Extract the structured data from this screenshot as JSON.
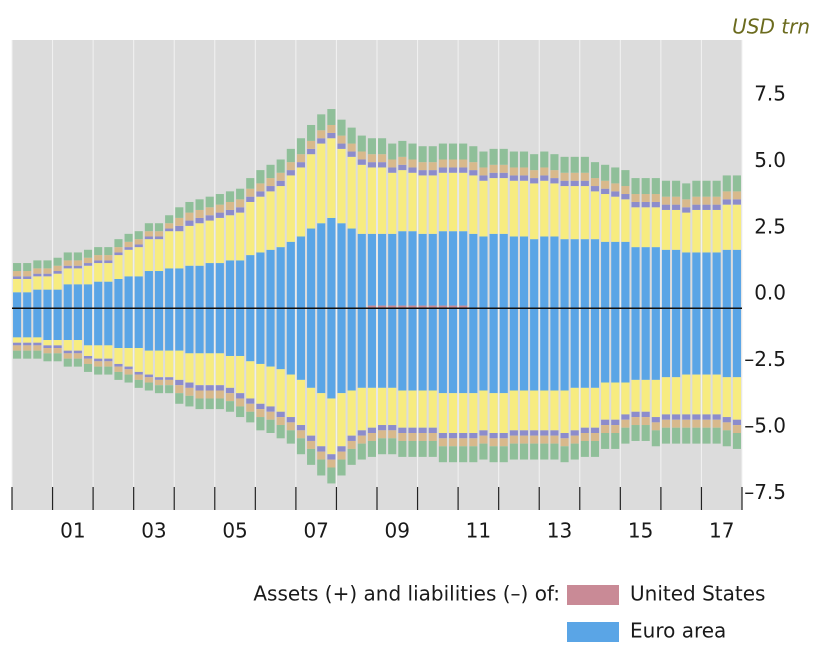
{
  "chart_data": {
    "type": "bar",
    "stacked": true,
    "unit": "USD trn",
    "legend_title": "Assets (+) and liabilities (–) of:",
    "categories": [
      null,
      null,
      null,
      null,
      null,
      "01",
      null,
      null,
      null,
      null,
      null,
      null,
      null,
      "03",
      null,
      null,
      null,
      null,
      null,
      null,
      null,
      "05",
      null,
      null,
      null,
      null,
      null,
      null,
      null,
      "07",
      null,
      null,
      null,
      null,
      null,
      null,
      null,
      "09",
      null,
      null,
      null,
      null,
      null,
      null,
      null,
      "11",
      null,
      null,
      null,
      null,
      null,
      null,
      null,
      "13",
      null,
      null,
      null,
      null,
      null,
      null,
      null,
      "15",
      null,
      null,
      null,
      null,
      null,
      null,
      null,
      "17",
      null,
      null
    ],
    "ylim": [
      -7.6,
      10.1
    ],
    "yticks": [
      {
        "value": -7.5,
        "label": "–7.5"
      },
      {
        "value": -5,
        "label": "–5.0"
      },
      {
        "value": -2.5,
        "label": "–2.5"
      },
      {
        "value": 0,
        "label": "0.0"
      },
      2.5,
      {
        "value": 5,
        "label": "5.0"
      },
      7.5
    ],
    "series": [
      {
        "name": "United States",
        "color": "#c98a96",
        "values": [
          0,
          0,
          0,
          0,
          0,
          0,
          0,
          0,
          0,
          0,
          0,
          0,
          0,
          0,
          0,
          0,
          0,
          0,
          0,
          0,
          0,
          0,
          0,
          0,
          0,
          0,
          0,
          0,
          0,
          0,
          0,
          0,
          0,
          0,
          0,
          0.1,
          0.1,
          0.1,
          0.1,
          0.1,
          0.1,
          0.1,
          0.1,
          0.1,
          0.1,
          0,
          0,
          0,
          0,
          0,
          0,
          0,
          0,
          0,
          0,
          0,
          0,
          0,
          0,
          0,
          0,
          0,
          0,
          0,
          0,
          0,
          0,
          0,
          0,
          0,
          0,
          0
        ]
      },
      {
        "name": "Euro area",
        "color": "#5aa5e6",
        "values": [
          0.6,
          0.6,
          0.7,
          0.7,
          0.7,
          0.9,
          0.9,
          0.9,
          1.0,
          1.0,
          1.1,
          1.2,
          1.2,
          1.4,
          1.4,
          1.5,
          1.5,
          1.6,
          1.6,
          1.7,
          1.7,
          1.8,
          1.8,
          2.0,
          2.1,
          2.2,
          2.3,
          2.5,
          2.7,
          3.0,
          3.2,
          3.4,
          3.2,
          3.0,
          2.8,
          2.7,
          2.7,
          2.7,
          2.8,
          2.8,
          2.7,
          2.7,
          2.8,
          2.8,
          2.8,
          2.8,
          2.7,
          2.8,
          2.8,
          2.7,
          2.7,
          2.6,
          2.7,
          2.7,
          2.6,
          2.6,
          2.6,
          2.6,
          2.5,
          2.5,
          2.5,
          2.3,
          2.3,
          2.3,
          2.2,
          2.2,
          2.1,
          2.1,
          2.1,
          2.1,
          2.2,
          2.2
        ]
      },
      {
        "color": "#f7ec80",
        "values": [
          0.5,
          0.5,
          0.5,
          0.5,
          0.6,
          0.6,
          0.6,
          0.7,
          0.7,
          0.7,
          0.9,
          1.0,
          1.1,
          1.2,
          1.2,
          1.4,
          1.4,
          1.5,
          1.6,
          1.6,
          1.7,
          1.7,
          1.8,
          2.0,
          2.1,
          2.2,
          2.3,
          2.5,
          2.6,
          2.8,
          3.0,
          3.0,
          2.8,
          2.7,
          2.6,
          2.5,
          2.5,
          2.3,
          2.3,
          2.2,
          2.2,
          2.2,
          2.2,
          2.2,
          2.2,
          2.2,
          2.1,
          2.1,
          2.1,
          2.1,
          2.1,
          2.1,
          2.1,
          2.0,
          2.0,
          2.0,
          2.0,
          1.8,
          1.8,
          1.7,
          1.6,
          1.5,
          1.5,
          1.5,
          1.5,
          1.5,
          1.5,
          1.6,
          1.6,
          1.6,
          1.7,
          1.7
        ]
      },
      {
        "color": "#8c8ccc",
        "values": [
          0.1,
          0.1,
          0.1,
          0.1,
          0.1,
          0.1,
          0.1,
          0.1,
          0.1,
          0.1,
          0.1,
          0.1,
          0.1,
          0.1,
          0.1,
          0.1,
          0.2,
          0.2,
          0.2,
          0.2,
          0.2,
          0.2,
          0.2,
          0.2,
          0.2,
          0.2,
          0.2,
          0.2,
          0.2,
          0.2,
          0.2,
          0.2,
          0.2,
          0.2,
          0.2,
          0.2,
          0.2,
          0.2,
          0.2,
          0.2,
          0.2,
          0.2,
          0.2,
          0.2,
          0.2,
          0.2,
          0.2,
          0.2,
          0.2,
          0.2,
          0.2,
          0.2,
          0.2,
          0.2,
          0.2,
          0.2,
          0.2,
          0.2,
          0.2,
          0.2,
          0.2,
          0.2,
          0.2,
          0.2,
          0.2,
          0.2,
          0.2,
          0.2,
          0.2,
          0.2,
          0.2,
          0.2
        ]
      },
      {
        "color": "#d8b98c",
        "values": [
          0.2,
          0.2,
          0.2,
          0.2,
          0.2,
          0.2,
          0.2,
          0.2,
          0.2,
          0.2,
          0.2,
          0.2,
          0.2,
          0.2,
          0.2,
          0.2,
          0.3,
          0.3,
          0.3,
          0.3,
          0.3,
          0.3,
          0.3,
          0.3,
          0.3,
          0.3,
          0.3,
          0.3,
          0.3,
          0.3,
          0.3,
          0.3,
          0.3,
          0.3,
          0.3,
          0.3,
          0.3,
          0.3,
          0.3,
          0.3,
          0.3,
          0.3,
          0.3,
          0.3,
          0.3,
          0.3,
          0.3,
          0.3,
          0.3,
          0.3,
          0.3,
          0.3,
          0.3,
          0.3,
          0.3,
          0.3,
          0.3,
          0.3,
          0.3,
          0.3,
          0.3,
          0.3,
          0.3,
          0.3,
          0.3,
          0.3,
          0.3,
          0.3,
          0.3,
          0.3,
          0.3,
          0.3
        ]
      },
      {
        "color": "#8fbf99",
        "values": [
          0.3,
          0.3,
          0.3,
          0.3,
          0.3,
          0.3,
          0.3,
          0.3,
          0.3,
          0.3,
          0.3,
          0.3,
          0.3,
          0.3,
          0.3,
          0.3,
          0.4,
          0.4,
          0.4,
          0.4,
          0.4,
          0.4,
          0.4,
          0.4,
          0.5,
          0.5,
          0.5,
          0.5,
          0.6,
          0.6,
          0.6,
          0.6,
          0.6,
          0.6,
          0.6,
          0.6,
          0.6,
          0.6,
          0.6,
          0.6,
          0.6,
          0.6,
          0.6,
          0.6,
          0.6,
          0.6,
          0.6,
          0.6,
          0.6,
          0.6,
          0.6,
          0.6,
          0.6,
          0.6,
          0.6,
          0.6,
          0.6,
          0.6,
          0.6,
          0.6,
          0.6,
          0.6,
          0.6,
          0.6,
          0.6,
          0.6,
          0.6,
          0.6,
          0.6,
          0.6,
          0.6,
          0.6
        ]
      },
      {
        "color": "#5aa5e6",
        "values": [
          -1.1,
          -1.1,
          -1.1,
          -1.2,
          -1.2,
          -1.2,
          -1.2,
          -1.4,
          -1.4,
          -1.4,
          -1.5,
          -1.5,
          -1.5,
          -1.6,
          -1.6,
          -1.6,
          -1.6,
          -1.7,
          -1.7,
          -1.7,
          -1.7,
          -1.8,
          -1.8,
          -2.0,
          -2.1,
          -2.2,
          -2.3,
          -2.5,
          -2.7,
          -3.0,
          -3.2,
          -3.4,
          -3.2,
          -3.1,
          -3.0,
          -3.0,
          -3.0,
          -3.0,
          -3.1,
          -3.1,
          -3.1,
          -3.1,
          -3.2,
          -3.2,
          -3.2,
          -3.2,
          -3.1,
          -3.2,
          -3.2,
          -3.1,
          -3.1,
          -3.1,
          -3.1,
          -3.1,
          -3.1,
          -3.0,
          -3.0,
          -3.0,
          -2.8,
          -2.8,
          -2.8,
          -2.7,
          -2.7,
          -2.7,
          -2.6,
          -2.6,
          -2.5,
          -2.5,
          -2.5,
          -2.5,
          -2.6,
          -2.6
        ]
      },
      {
        "color": "#f7ec80",
        "values": [
          -0.2,
          -0.2,
          -0.2,
          -0.2,
          -0.2,
          -0.4,
          -0.4,
          -0.4,
          -0.5,
          -0.5,
          -0.6,
          -0.7,
          -0.9,
          -0.9,
          -1.0,
          -1.0,
          -1.1,
          -1.1,
          -1.2,
          -1.2,
          -1.2,
          -1.2,
          -1.4,
          -1.4,
          -1.5,
          -1.5,
          -1.6,
          -1.6,
          -1.7,
          -1.8,
          -2.0,
          -2.1,
          -2.0,
          -1.7,
          -1.6,
          -1.5,
          -1.4,
          -1.4,
          -1.4,
          -1.4,
          -1.4,
          -1.4,
          -1.5,
          -1.5,
          -1.5,
          -1.5,
          -1.5,
          -1.5,
          -1.5,
          -1.5,
          -1.5,
          -1.5,
          -1.5,
          -1.5,
          -1.6,
          -1.6,
          -1.5,
          -1.5,
          -1.4,
          -1.4,
          -1.2,
          -1.2,
          -1.2,
          -1.4,
          -1.4,
          -1.4,
          -1.5,
          -1.5,
          -1.5,
          -1.5,
          -1.5,
          -1.6
        ]
      },
      {
        "color": "#8c8ccc",
        "values": [
          -0.1,
          -0.1,
          -0.1,
          -0.1,
          -0.1,
          -0.1,
          -0.1,
          -0.1,
          -0.1,
          -0.1,
          -0.1,
          -0.1,
          -0.1,
          -0.1,
          -0.1,
          -0.1,
          -0.2,
          -0.2,
          -0.2,
          -0.2,
          -0.2,
          -0.2,
          -0.2,
          -0.2,
          -0.2,
          -0.2,
          -0.2,
          -0.2,
          -0.2,
          -0.2,
          -0.2,
          -0.2,
          -0.2,
          -0.2,
          -0.2,
          -0.2,
          -0.2,
          -0.2,
          -0.2,
          -0.2,
          -0.2,
          -0.2,
          -0.2,
          -0.2,
          -0.2,
          -0.2,
          -0.2,
          -0.2,
          -0.2,
          -0.2,
          -0.2,
          -0.2,
          -0.2,
          -0.2,
          -0.2,
          -0.2,
          -0.2,
          -0.2,
          -0.2,
          -0.2,
          -0.2,
          -0.2,
          -0.2,
          -0.2,
          -0.2,
          -0.2,
          -0.2,
          -0.2,
          -0.2,
          -0.2,
          -0.2,
          -0.2
        ]
      },
      {
        "color": "#d8b98c",
        "values": [
          -0.2,
          -0.2,
          -0.2,
          -0.2,
          -0.2,
          -0.2,
          -0.2,
          -0.2,
          -0.2,
          -0.2,
          -0.2,
          -0.2,
          -0.2,
          -0.2,
          -0.2,
          -0.2,
          -0.3,
          -0.3,
          -0.3,
          -0.3,
          -0.3,
          -0.3,
          -0.3,
          -0.3,
          -0.3,
          -0.3,
          -0.3,
          -0.3,
          -0.3,
          -0.3,
          -0.3,
          -0.3,
          -0.3,
          -0.3,
          -0.3,
          -0.3,
          -0.3,
          -0.3,
          -0.3,
          -0.3,
          -0.3,
          -0.3,
          -0.3,
          -0.3,
          -0.3,
          -0.3,
          -0.3,
          -0.3,
          -0.3,
          -0.3,
          -0.3,
          -0.3,
          -0.3,
          -0.3,
          -0.3,
          -0.3,
          -0.3,
          -0.3,
          -0.3,
          -0.3,
          -0.3,
          -0.3,
          -0.3,
          -0.3,
          -0.3,
          -0.3,
          -0.3,
          -0.3,
          -0.3,
          -0.3,
          -0.3,
          -0.3
        ]
      },
      {
        "color": "#8fbf99",
        "values": [
          -0.3,
          -0.3,
          -0.3,
          -0.3,
          -0.3,
          -0.3,
          -0.3,
          -0.3,
          -0.3,
          -0.3,
          -0.3,
          -0.3,
          -0.3,
          -0.3,
          -0.3,
          -0.3,
          -0.4,
          -0.4,
          -0.4,
          -0.4,
          -0.4,
          -0.4,
          -0.4,
          -0.4,
          -0.5,
          -0.5,
          -0.5,
          -0.5,
          -0.6,
          -0.6,
          -0.6,
          -0.6,
          -0.6,
          -0.6,
          -0.6,
          -0.6,
          -0.6,
          -0.6,
          -0.6,
          -0.6,
          -0.6,
          -0.6,
          -0.6,
          -0.6,
          -0.6,
          -0.6,
          -0.6,
          -0.6,
          -0.6,
          -0.6,
          -0.6,
          -0.6,
          -0.6,
          -0.6,
          -0.6,
          -0.6,
          -0.6,
          -0.6,
          -0.6,
          -0.6,
          -0.6,
          -0.6,
          -0.6,
          -0.6,
          -0.6,
          -0.6,
          -0.6,
          -0.6,
          -0.6,
          -0.6,
          -0.6,
          -0.6
        ]
      }
    ]
  }
}
